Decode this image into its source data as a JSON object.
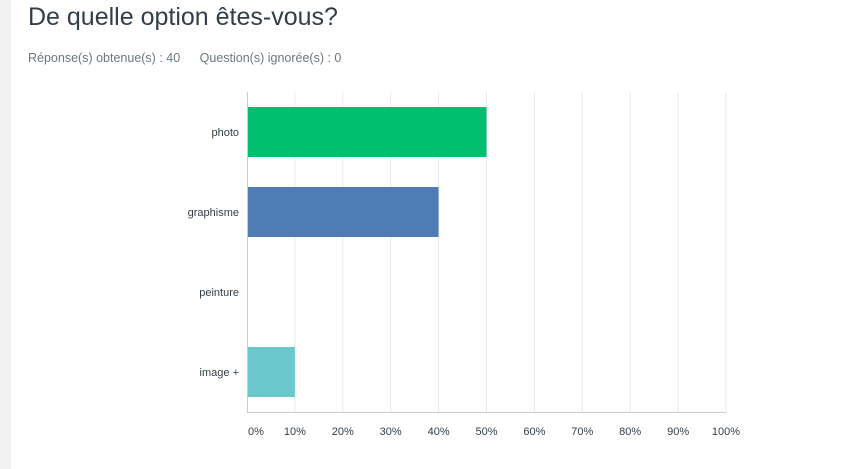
{
  "question": {
    "title": "De quelle option êtes-vous?",
    "answered_label": "Réponse(s) obtenue(s) : 40",
    "skipped_label": "Question(s) ignorée(s) : 0"
  },
  "chart_data": {
    "type": "bar",
    "orientation": "horizontal",
    "categories": [
      "photo",
      "graphisme",
      "peinture",
      "image +"
    ],
    "values": [
      50,
      40,
      0,
      10
    ],
    "colors": [
      "#00bf6f",
      "#507cb6",
      "#f9be00",
      "#6bc8cd"
    ],
    "x_ticks": [
      "0%",
      "10%",
      "20%",
      "30%",
      "40%",
      "50%",
      "60%",
      "70%",
      "80%",
      "90%",
      "100%"
    ],
    "xlim": [
      0,
      100
    ],
    "grid": true
  }
}
